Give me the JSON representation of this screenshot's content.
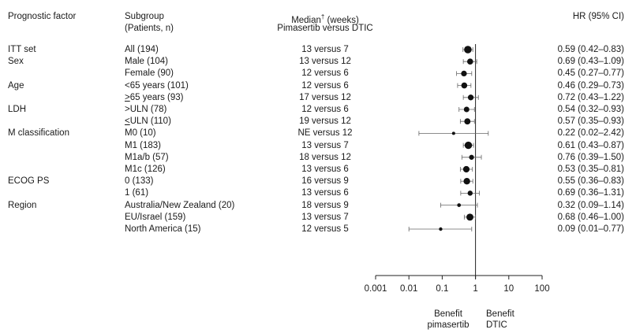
{
  "headers": {
    "factor": "Prognostic factor",
    "subgroup_line1": "Subgroup",
    "subgroup_line2": "(Patients, n)",
    "median_line1": "Median",
    "median_dagger": "†",
    "median_unit": " (weeks)",
    "median_line2": "Pimasertib versus DTIC",
    "hr": "HR (95% CI)"
  },
  "benefit_left": [
    "Benefit",
    "pimasertib"
  ],
  "benefit_right": [
    "Benefit",
    "DTIC"
  ],
  "chart_data": {
    "type": "forest",
    "x_scale": "log",
    "x_ticks": [
      0.001,
      0.01,
      0.1,
      1,
      10,
      100
    ],
    "x_tick_labels": [
      "0.001",
      "0.01",
      "0.1",
      "1",
      "10",
      "100"
    ],
    "reference_line": 1,
    "rows": [
      {
        "factor": "ITT set",
        "subgroup": "All (194)",
        "median": "13 versus 7",
        "hr": 0.59,
        "lo": 0.42,
        "hi": 0.83,
        "hr_text": "0.59 (0.42–0.83)",
        "n": 194
      },
      {
        "factor": "Sex",
        "subgroup": "Male (104)",
        "median": "13 versus 12",
        "hr": 0.69,
        "lo": 0.43,
        "hi": 1.09,
        "hr_text": "0.69 (0.43–1.09)",
        "n": 104
      },
      {
        "factor": "",
        "subgroup": "Female (90)",
        "median": "12 versus 6",
        "hr": 0.45,
        "lo": 0.27,
        "hi": 0.77,
        "hr_text": "0.45 (0.27–0.77)",
        "n": 90
      },
      {
        "factor": "Age",
        "subgroup": "<65 years (101)",
        "median": "12 versus 6",
        "hr": 0.46,
        "lo": 0.29,
        "hi": 0.73,
        "hr_text": "0.46 (0.29–0.73)",
        "n": 101
      },
      {
        "factor": "",
        "subgroup": ">65 years (93)",
        "subgroup_underline_first": true,
        "median": "17 versus 12",
        "hr": 0.72,
        "lo": 0.43,
        "hi": 1.22,
        "hr_text": "0.72 (0.43–1.22)",
        "n": 93
      },
      {
        "factor": "LDH",
        "subgroup": ">ULN (78)",
        "median": "12 versus 6",
        "hr": 0.54,
        "lo": 0.32,
        "hi": 0.93,
        "hr_text": "0.54 (0.32–0.93)",
        "n": 78
      },
      {
        "factor": "",
        "subgroup": "<ULN (110)",
        "subgroup_underline_first": true,
        "median": "19 versus 12",
        "hr": 0.57,
        "lo": 0.35,
        "hi": 0.93,
        "hr_text": "0.57 (0.35–0.93)",
        "n": 110
      },
      {
        "factor": "M classification",
        "subgroup": "M0 (10)",
        "median": "NE versus 12",
        "hr": 0.22,
        "lo": 0.02,
        "hi": 2.42,
        "hr_text": "0.22 (0.02–2.42)",
        "n": 10
      },
      {
        "factor": "",
        "subgroup": "M1 (183)",
        "median": "13 versus 7",
        "hr": 0.61,
        "lo": 0.43,
        "hi": 0.87,
        "hr_text": "0.61 (0.43–0.87)",
        "n": 183
      },
      {
        "factor": "",
        "subgroup": "M1a/b (57)",
        "median": "18 versus 12",
        "hr": 0.76,
        "lo": 0.39,
        "hi": 1.5,
        "hr_text": "0.76 (0.39–1.50)",
        "n": 57
      },
      {
        "factor": "",
        "subgroup": "M1c (126)",
        "median": "13 versus 6",
        "hr": 0.53,
        "lo": 0.35,
        "hi": 0.81,
        "hr_text": "0.53 (0.35–0.81)",
        "n": 126
      },
      {
        "factor": "ECOG PS",
        "subgroup": "0 (133)",
        "median": "16 versus 9",
        "hr": 0.55,
        "lo": 0.36,
        "hi": 0.83,
        "hr_text": "0.55 (0.36–0.83)",
        "n": 133
      },
      {
        "factor": "",
        "subgroup": "1 (61)",
        "median": "13 versus 6",
        "hr": 0.69,
        "lo": 0.36,
        "hi": 1.31,
        "hr_text": "0.69 (0.36–1.31)",
        "n": 61
      },
      {
        "factor": "Region",
        "subgroup": "Australia/New Zealand (20)",
        "median": "18 versus 9",
        "hr": 0.32,
        "lo": 0.09,
        "hi": 1.14,
        "hr_text": "0.32 (0.09–1.14)",
        "n": 20
      },
      {
        "factor": "",
        "subgroup": "EU/Israel (159)",
        "median": "13 versus 7",
        "hr": 0.68,
        "lo": 0.46,
        "hi": 1.0,
        "hr_text": "0.68 (0.46–1.00)",
        "n": 159
      },
      {
        "factor": "",
        "subgroup": "North America (15)",
        "median": "12 versus 5",
        "hr": 0.09,
        "lo": 0.01,
        "hi": 0.77,
        "hr_text": "0.09 (0.01–0.77)",
        "n": 15
      }
    ]
  }
}
